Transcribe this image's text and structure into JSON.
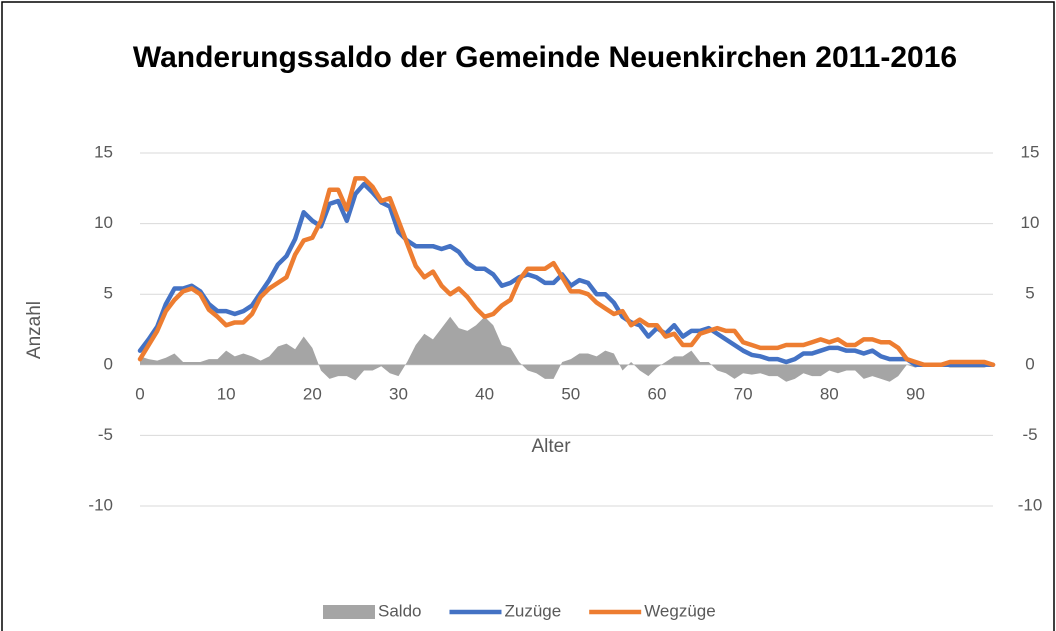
{
  "chart_data": {
    "type": "line",
    "title": "Wanderungssaldo der Gemeinde Neuenkirchen 2011-2016",
    "x_label": "Alter",
    "y_label": "Anzahl",
    "x": [
      0,
      1,
      2,
      3,
      4,
      5,
      6,
      7,
      8,
      9,
      10,
      11,
      12,
      13,
      14,
      15,
      16,
      17,
      18,
      19,
      20,
      21,
      22,
      23,
      24,
      25,
      26,
      27,
      28,
      29,
      30,
      31,
      32,
      33,
      34,
      35,
      36,
      37,
      38,
      39,
      40,
      41,
      42,
      43,
      44,
      45,
      46,
      47,
      48,
      49,
      50,
      51,
      52,
      53,
      54,
      55,
      56,
      57,
      58,
      59,
      60,
      61,
      62,
      63,
      64,
      65,
      66,
      67,
      68,
      69,
      70,
      71,
      72,
      73,
      74,
      75,
      76,
      77,
      78,
      79,
      80,
      81,
      82,
      83,
      84,
      85,
      86,
      87,
      88,
      89,
      90,
      91,
      92,
      93,
      94,
      95,
      96,
      97,
      98,
      99
    ],
    "xlim": [
      0,
      99
    ],
    "xticks": [
      0,
      10,
      20,
      30,
      40,
      50,
      60,
      70,
      80,
      90
    ],
    "ylim": [
      -10,
      15
    ],
    "yticks": [
      -10,
      -5,
      0,
      5,
      10,
      15
    ],
    "y2lim": [
      -10,
      15
    ],
    "y2ticks": [
      -10,
      -5,
      0,
      5,
      10,
      15
    ],
    "grid": true,
    "legend": "bottom",
    "series": [
      {
        "name": "Saldo",
        "kind": "area",
        "color": "#a5a5a5",
        "values": [
          0.6,
          0.4,
          0.3,
          0.5,
          0.8,
          0.2,
          0.2,
          0.2,
          0.4,
          0.4,
          1.0,
          0.6,
          0.8,
          0.6,
          0.3,
          0.6,
          1.3,
          1.5,
          1.1,
          2.0,
          1.2,
          -0.4,
          -1.0,
          -0.8,
          -0.8,
          -1.1,
          -0.4,
          -0.4,
          -0.1,
          -0.6,
          -0.8,
          0.2,
          1.4,
          2.2,
          1.8,
          2.6,
          3.4,
          2.6,
          2.4,
          2.8,
          3.4,
          2.8,
          1.4,
          1.2,
          0.2,
          -0.4,
          -0.6,
          -1.0,
          -1.0,
          0.2,
          0.4,
          0.8,
          0.8,
          0.6,
          1.0,
          0.8,
          -0.4,
          0.2,
          -0.4,
          -0.8,
          -0.2,
          0.2,
          0.6,
          0.6,
          1.0,
          0.2,
          0.2,
          -0.4,
          -0.6,
          -1.0,
          -0.6,
          -0.7,
          -0.6,
          -0.8,
          -0.8,
          -1.2,
          -1.0,
          -0.6,
          -0.8,
          -0.8,
          -0.4,
          -0.6,
          -0.4,
          -0.4,
          -1.0,
          -0.8,
          -1.0,
          -1.2,
          -0.8,
          0,
          -0.2,
          0,
          0,
          0,
          -0.2,
          -0.2,
          -0.2,
          -0.2,
          -0.2,
          0
        ]
      },
      {
        "name": "Zuzüge",
        "kind": "line",
        "color": "#4472c4",
        "values": [
          1,
          1.8,
          2.7,
          4.3,
          5.4,
          5.4,
          5.6,
          5.2,
          4.3,
          3.8,
          3.8,
          3.6,
          3.8,
          4.2,
          5.1,
          6.0,
          7.1,
          7.7,
          8.9,
          10.8,
          10.2,
          9.8,
          11.4,
          11.6,
          10.2,
          12.1,
          12.8,
          12.2,
          11.5,
          11.2,
          9.4,
          8.8,
          8.4,
          8.4,
          8.4,
          8.2,
          8.4,
          8.0,
          7.2,
          6.8,
          6.8,
          6.4,
          5.6,
          5.8,
          6.2,
          6.4,
          6.2,
          5.8,
          5.8,
          6.4,
          5.6,
          6.0,
          5.8,
          5.0,
          5.0,
          4.4,
          3.4,
          3.0,
          2.8,
          2.0,
          2.6,
          2.2,
          2.8,
          2.0,
          2.4,
          2.4,
          2.6,
          2.2,
          1.8,
          1.4,
          1.0,
          0.7,
          0.6,
          0.4,
          0.4,
          0.2,
          0.4,
          0.8,
          0.8,
          1.0,
          1.2,
          1.2,
          1.0,
          1.0,
          0.8,
          1.0,
          0.6,
          0.4,
          0.4,
          0.4,
          0,
          0,
          0,
          0,
          0,
          0,
          0,
          0,
          0,
          0
        ]
      },
      {
        "name": "Wegzüge",
        "kind": "line",
        "color": "#ed7d31",
        "values": [
          0.4,
          1.4,
          2.4,
          3.8,
          4.6,
          5.2,
          5.4,
          5.0,
          3.9,
          3.4,
          2.8,
          3.0,
          3.0,
          3.6,
          4.8,
          5.4,
          5.8,
          6.2,
          7.8,
          8.8,
          9.0,
          10.2,
          12.4,
          12.4,
          11.0,
          13.2,
          13.2,
          12.6,
          11.6,
          11.8,
          10.2,
          8.6,
          7.0,
          6.2,
          6.6,
          5.6,
          5.0,
          5.4,
          4.8,
          4.0,
          3.4,
          3.6,
          4.2,
          4.6,
          6.0,
          6.8,
          6.8,
          6.8,
          7.2,
          6.2,
          5.2,
          5.2,
          5.0,
          4.4,
          4.0,
          3.6,
          3.8,
          2.8,
          3.2,
          2.8,
          2.8,
          2.0,
          2.2,
          1.4,
          1.4,
          2.2,
          2.4,
          2.6,
          2.4,
          2.4,
          1.6,
          1.4,
          1.2,
          1.2,
          1.2,
          1.4,
          1.4,
          1.4,
          1.6,
          1.8,
          1.6,
          1.8,
          1.4,
          1.4,
          1.8,
          1.8,
          1.6,
          1.6,
          1.2,
          0.4,
          0.2,
          0,
          0,
          0,
          0.2,
          0.2,
          0.2,
          0.2,
          0.2,
          0
        ]
      }
    ]
  }
}
